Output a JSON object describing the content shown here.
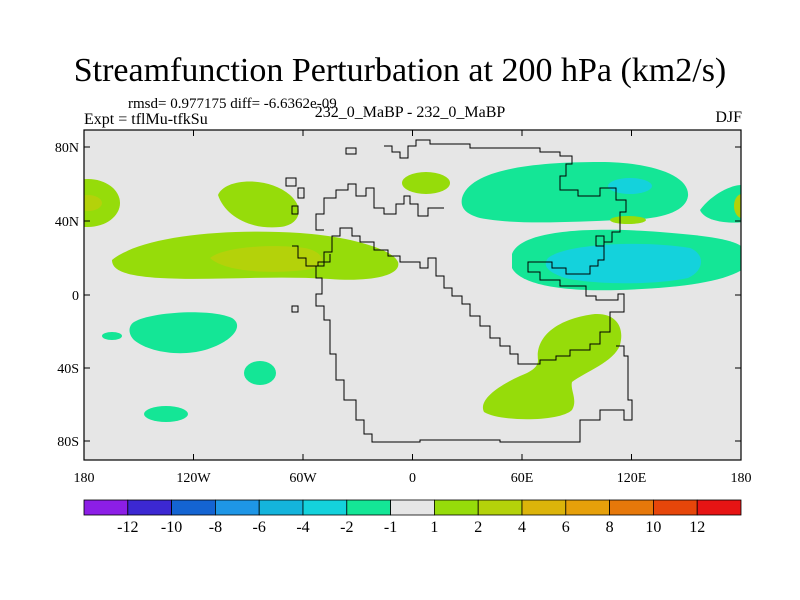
{
  "header": {
    "title": "Streamfunction Perturbation at 200 hPa (km2/s)",
    "stats": "rmsd= 0.977175 diff= -6.6362e-09",
    "experiment": "Expt = tflMu-tfkSu",
    "comparison": "232_0_MaBP - 232_0_MaBP",
    "season": "DJF"
  },
  "map": {
    "background_color": "#e6e6e6",
    "lat_labels": [
      "80N",
      "40N",
      "0",
      "40S",
      "80S"
    ],
    "lon_labels": [
      "180",
      "120W",
      "60W",
      "0",
      "60E",
      "120E",
      "180"
    ]
  },
  "colorbar": {
    "colors": [
      "#8c1ee6",
      "#3c28d2",
      "#1464d2",
      "#1e96e6",
      "#14b4dc",
      "#14d2dc",
      "#14e696",
      "#e6e6e6",
      "#96dc0a",
      "#b4d20a",
      "#dcb40a",
      "#e6a00a",
      "#e6780a",
      "#e6460a",
      "#e61414"
    ],
    "labels": [
      "-12",
      "-10",
      "-8",
      "-6",
      "-4",
      "-2",
      "-1",
      "1",
      "2",
      "4",
      "6",
      "8",
      "10",
      "12"
    ]
  },
  "legend_colors": {
    "green": "#96dc0a",
    "yellow_green": "#b4d20a",
    "gold": "#dcb40a",
    "teal": "#14e696",
    "cyan": "#14d2dc",
    "light_cyan": "#14b4dc"
  }
}
